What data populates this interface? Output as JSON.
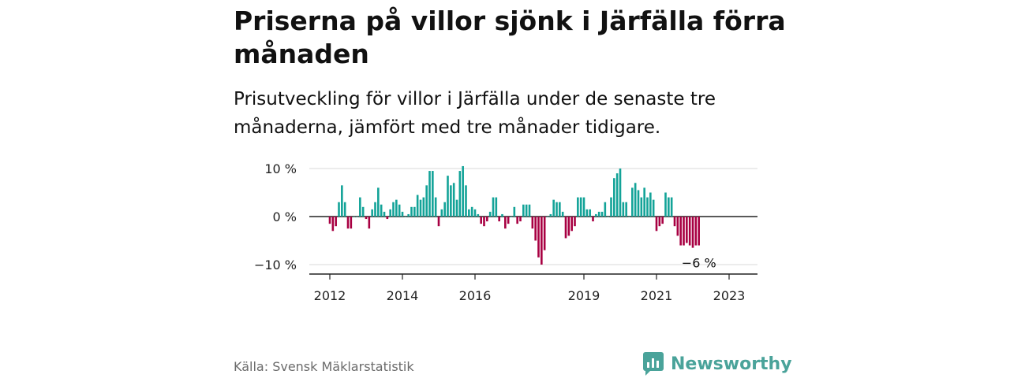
{
  "title": "Priserna på villor sjönk i Järfälla förra månaden",
  "subtitle": "Prisutveckling för villor i Järfälla under de senaste tre månaderna, jämfört med tre månader tidigare.",
  "source": "Källa: Svensk Mäklarstatistik",
  "brand": {
    "name": "Newsworthy",
    "logo_icon": "newsworthy-logo-icon",
    "color": "#4aa39a"
  },
  "chart_data": {
    "type": "bar",
    "x_start": "2012-01",
    "y_ticks": [
      {
        "value": 10,
        "label": "10 %"
      },
      {
        "value": 0,
        "label": "0 %"
      },
      {
        "value": -10,
        "label": "−10 %"
      }
    ],
    "x_ticks": [
      {
        "date": "2012-01",
        "label": "2012"
      },
      {
        "date": "2014-01",
        "label": "2014"
      },
      {
        "date": "2016-01",
        "label": "2016"
      },
      {
        "date": "2019-01",
        "label": "2019"
      },
      {
        "date": "2021-01",
        "label": "2021"
      },
      {
        "date": "2023-01",
        "label": "2023"
      }
    ],
    "ylim": [
      -11,
      10.5
    ],
    "grid": true,
    "colors": {
      "positive": "#13a398",
      "negative": "#a80042"
    },
    "annotation": {
      "label": "−6 %"
    },
    "values": [
      -1.5,
      -3,
      -2,
      3,
      6.5,
      3,
      -2.5,
      -2.5,
      0,
      0,
      4,
      2,
      -0.5,
      -2.5,
      1.5,
      3,
      6,
      2.5,
      1,
      -0.5,
      1.5,
      3,
      3.5,
      2.5,
      1,
      0,
      0.5,
      2,
      2,
      4.5,
      3.5,
      4,
      6.5,
      9.5,
      9.5,
      4,
      -2,
      1.5,
      3,
      8.5,
      6.5,
      7,
      3.5,
      9.5,
      10.5,
      6.5,
      1.5,
      2,
      1.5,
      0.5,
      -1.5,
      -2,
      -1,
      1,
      4,
      4,
      -1,
      0.5,
      -2.5,
      -1.5,
      0,
      2,
      -1.5,
      -1,
      2.5,
      2.5,
      2.5,
      -2.5,
      -5,
      -8.5,
      -10,
      -7,
      0,
      0.5,
      3.5,
      3,
      3,
      1,
      -4.5,
      -4,
      -3,
      -2,
      4,
      4,
      4,
      1.5,
      1.5,
      -1,
      0.5,
      1,
      1,
      3,
      0,
      4,
      8,
      9,
      10,
      3,
      3,
      0,
      6,
      7,
      5.5,
      4,
      6,
      4,
      5,
      3.5,
      -3,
      -2,
      -1.5,
      5,
      4,
      4,
      -2,
      -4,
      -6,
      -6,
      -5.5,
      -6,
      -6.5,
      -6,
      -6
    ]
  }
}
